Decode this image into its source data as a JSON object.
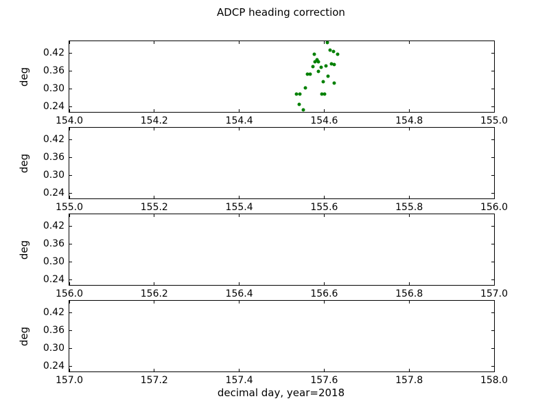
{
  "figure": {
    "title": "ADCP heading correction",
    "xlabel": "decimal day, year=2018"
  },
  "chart_data": {
    "type": "scatter",
    "title": "ADCP heading correction",
    "xlabel": "decimal day, year=2018",
    "ylabel": "deg",
    "marker_color": "#008000",
    "marker": "dot",
    "grid": false,
    "legend": "none",
    "ylim": [
      0.2227,
      0.4615
    ],
    "yticks": [
      0.24,
      0.3,
      0.36,
      0.42
    ],
    "ytick_labels": [
      "0.24",
      "0.30",
      "0.36",
      "0.42"
    ],
    "subplots": [
      {
        "ylabel": "deg",
        "xlim": [
          154.0,
          155.0
        ],
        "xticks": [
          154.0,
          154.2,
          154.4,
          154.6,
          154.8,
          155.0
        ],
        "xtick_labels": [
          "154.0",
          "154.2",
          "154.4",
          "154.6",
          "154.8",
          "155.0"
        ],
        "series": [
          {
            "name": "heading correction",
            "x": [
              154.607,
              154.614,
              154.622,
              154.631,
              154.576,
              154.583,
              154.579,
              154.586,
              154.617,
              154.623,
              154.605,
              154.573,
              154.593,
              154.586,
              154.561,
              154.567,
              154.609,
              154.598,
              154.623,
              154.556,
              154.535,
              154.543,
              154.595,
              154.601,
              154.541,
              154.551
            ],
            "y": [
              0.458,
              0.432,
              0.427,
              0.417,
              0.417,
              0.399,
              0.391,
              0.391,
              0.386,
              0.382,
              0.378,
              0.375,
              0.373,
              0.359,
              0.35,
              0.35,
              0.343,
              0.325,
              0.321,
              0.305,
              0.282,
              0.282,
              0.282,
              0.282,
              0.249,
              0.229
            ]
          }
        ]
      },
      {
        "ylabel": "deg",
        "xlim": [
          155.0,
          156.0
        ],
        "xticks": [
          155.0,
          155.2,
          155.4,
          155.6,
          155.8,
          156.0
        ],
        "xtick_labels": [
          "155.0",
          "155.2",
          "155.4",
          "155.6",
          "155.8",
          "156.0"
        ],
        "series": [
          {
            "name": "heading correction",
            "x": [],
            "y": []
          }
        ]
      },
      {
        "ylabel": "deg",
        "xlim": [
          156.0,
          157.0
        ],
        "xticks": [
          156.0,
          156.2,
          156.4,
          156.6,
          156.8,
          157.0
        ],
        "xtick_labels": [
          "156.0",
          "156.2",
          "156.4",
          "156.6",
          "156.8",
          "157.0"
        ],
        "series": [
          {
            "name": "heading correction",
            "x": [],
            "y": []
          }
        ]
      },
      {
        "ylabel": "deg",
        "xlim": [
          157.0,
          158.0
        ],
        "xticks": [
          157.0,
          157.2,
          157.4,
          157.6,
          157.8,
          158.0
        ],
        "xtick_labels": [
          "157.0",
          "157.2",
          "157.4",
          "157.6",
          "157.8",
          "158.0"
        ],
        "series": [
          {
            "name": "heading correction",
            "x": [],
            "y": []
          }
        ]
      }
    ]
  }
}
